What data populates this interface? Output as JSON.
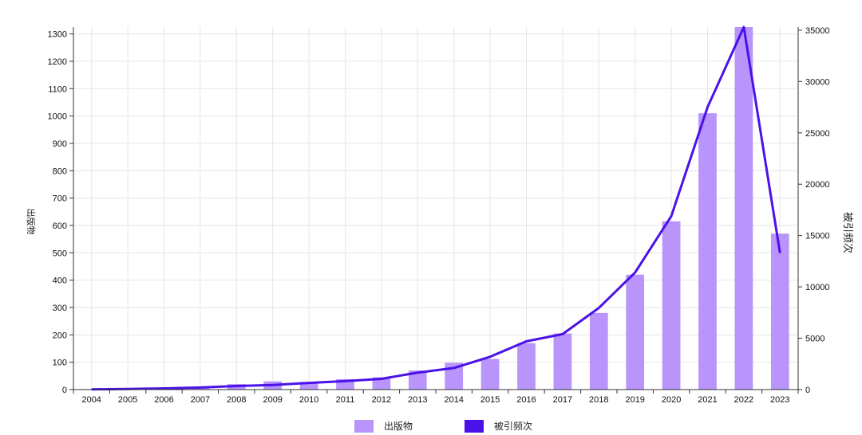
{
  "chart_data": {
    "type": "bar+line",
    "categories": [
      "2004",
      "2005",
      "2006",
      "2007",
      "2008",
      "2009",
      "2010",
      "2011",
      "2012",
      "2013",
      "2014",
      "2015",
      "2016",
      "2017",
      "2018",
      "2019",
      "2020",
      "2021",
      "2022",
      "2023"
    ],
    "series": [
      {
        "name": "出版物",
        "type": "bar",
        "axis": "left",
        "color": "#b894fb",
        "values": [
          2,
          3,
          5,
          8,
          20,
          30,
          28,
          38,
          45,
          70,
          98,
          112,
          170,
          205,
          280,
          420,
          615,
          1010,
          1325,
          570
        ]
      },
      {
        "name": "被引频次",
        "type": "line",
        "axis": "right",
        "color": "#4a12e8",
        "values": [
          20,
          60,
          120,
          200,
          350,
          450,
          650,
          820,
          1050,
          1650,
          2100,
          3200,
          4700,
          5400,
          7950,
          11400,
          16900,
          27500,
          35300,
          13300
        ]
      }
    ],
    "y_left": {
      "label": "出版物",
      "ticks": [
        0,
        100,
        200,
        300,
        400,
        500,
        600,
        700,
        800,
        900,
        1000,
        1100,
        1200,
        1300
      ],
      "ylim": [
        0,
        1325
      ]
    },
    "y_right": {
      "label": "被引频次",
      "ticks": [
        0,
        5000,
        10000,
        15000,
        20000,
        25000,
        30000,
        35000
      ],
      "ylim": [
        0,
        35300
      ]
    },
    "grid": true,
    "legend_position": "bottom"
  }
}
